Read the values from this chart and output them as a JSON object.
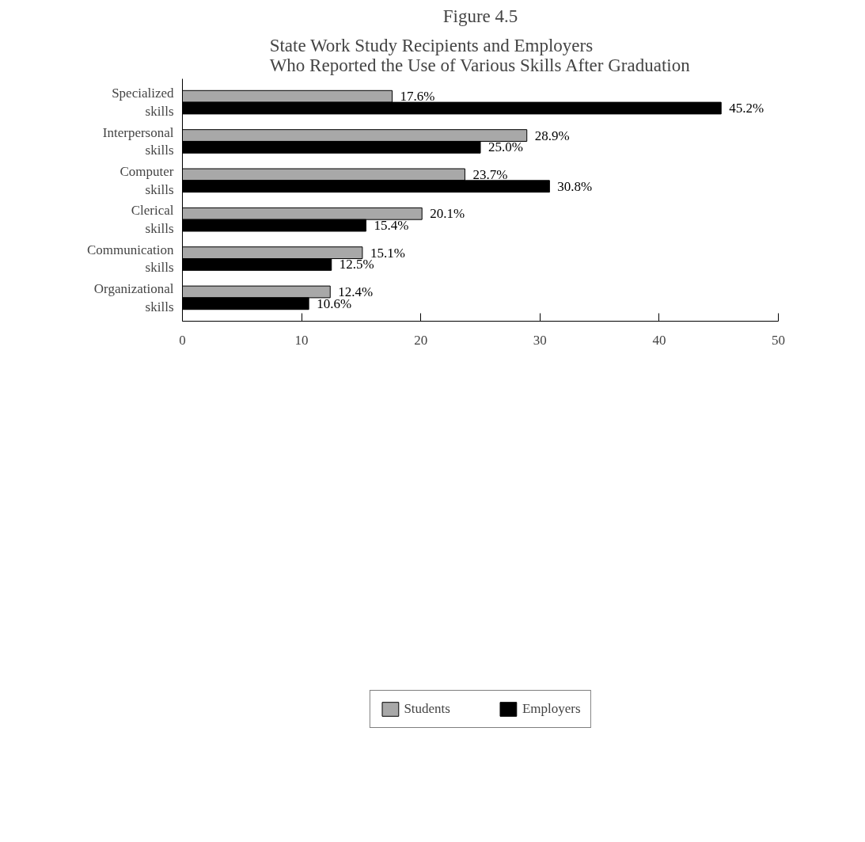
{
  "chart_data": {
    "type": "bar",
    "orientation": "horizontal",
    "title": "Figure 4.5",
    "subtitle": "State Work Study Recipients and Employers\nWho Reported the Use of Various Skills After Graduation",
    "categories": [
      "Specialized skills",
      "Interpersonal skills",
      "Computer skills",
      "Clerical skills",
      "Communication skills",
      "Organizational skills"
    ],
    "series": [
      {
        "name": "Students",
        "color": "#a8a8a8",
        "values": [
          17.6,
          28.9,
          23.7,
          20.1,
          15.1,
          12.4
        ],
        "value_labels": [
          "17.6%",
          "28.9%",
          "23.7%",
          "20.1%",
          "15.1%",
          "12.4%"
        ]
      },
      {
        "name": "Employers",
        "color": "#000000",
        "values": [
          45.2,
          25.0,
          30.8,
          15.4,
          12.5,
          10.6
        ],
        "value_labels": [
          "45.2%",
          "25.0%",
          "30.8%",
          "15.4%",
          "12.5%",
          "10.6%"
        ]
      }
    ],
    "xlim": [
      0,
      50
    ],
    "xticks": [
      0,
      10,
      20,
      30,
      40,
      50
    ],
    "grid": false,
    "legend": "bottom"
  }
}
